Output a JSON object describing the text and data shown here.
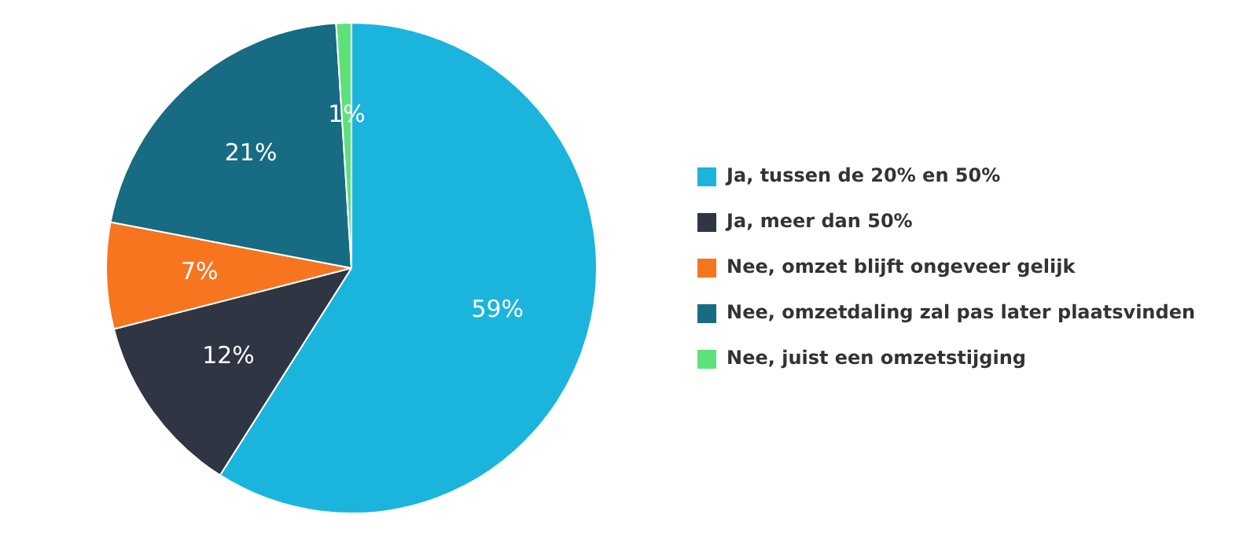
{
  "chart_data": {
    "type": "pie",
    "categories": [
      "Ja, tussen de 20% en 50%",
      "Ja, meer dan 50%",
      "Nee, omzet blijft ongeveer gelijk",
      "Nee, omzetdaling zal pas later plaatsvinden",
      "Nee, juist een omzetstijging"
    ],
    "values": [
      59,
      12,
      7,
      21,
      1
    ],
    "colors": [
      "#1bb4dd",
      "#2f3542",
      "#f7751f",
      "#176b82",
      "#5de27a"
    ],
    "value_labels": [
      "59%",
      "12%",
      "7%",
      "21%",
      "1%"
    ],
    "legend": "right"
  }
}
